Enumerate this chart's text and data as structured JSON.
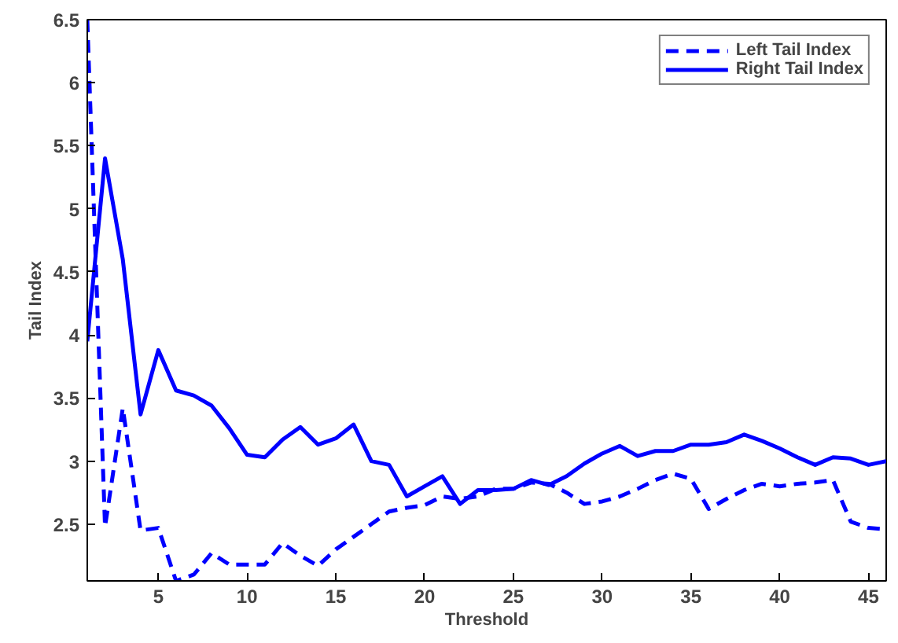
{
  "chart_data": {
    "type": "line",
    "xlabel": "Threshold",
    "ylabel": "Tail Index",
    "x": [
      1,
      2,
      3,
      4,
      5,
      6,
      7,
      8,
      9,
      10,
      11,
      12,
      13,
      14,
      15,
      16,
      17,
      18,
      19,
      20,
      21,
      22,
      23,
      24,
      25,
      26,
      27,
      28,
      29,
      30,
      31,
      32,
      33,
      34,
      35,
      36,
      37,
      38,
      39,
      40,
      41,
      42,
      43,
      44,
      45,
      46
    ],
    "series": [
      {
        "name": "Left Tail Index",
        "color": "#0000ff",
        "line_style": "dashed",
        "values": [
          6.5,
          2.48,
          3.42,
          2.45,
          2.47,
          2.05,
          2.1,
          2.27,
          2.18,
          2.18,
          2.18,
          2.35,
          2.25,
          2.17,
          2.3,
          2.4,
          2.5,
          2.6,
          2.63,
          2.65,
          2.72,
          2.7,
          2.72,
          2.78,
          2.78,
          2.83,
          2.82,
          2.75,
          2.66,
          2.68,
          2.72,
          2.78,
          2.85,
          2.9,
          2.86,
          2.62,
          2.7,
          2.77,
          2.82,
          2.8,
          2.82,
          2.83,
          2.85,
          2.52,
          2.47,
          2.46
        ]
      },
      {
        "name": "Right Tail Index",
        "color": "#0000ff",
        "line_style": "solid",
        "values": [
          3.95,
          5.4,
          4.6,
          3.37,
          3.88,
          3.56,
          3.52,
          3.44,
          3.26,
          3.05,
          3.03,
          3.17,
          3.27,
          3.13,
          3.18,
          3.29,
          3.0,
          2.97,
          2.72,
          2.8,
          2.88,
          2.66,
          2.77,
          2.77,
          2.78,
          2.85,
          2.81,
          2.88,
          2.98,
          3.06,
          3.12,
          3.04,
          3.08,
          3.08,
          3.13,
          3.13,
          3.15,
          3.21,
          3.16,
          3.1,
          3.03,
          2.97,
          3.03,
          3.02,
          2.97,
          3.0
        ]
      }
    ],
    "xlim": [
      1,
      46
    ],
    "ylim": [
      2.05,
      6.5
    ],
    "xticks": [
      5,
      10,
      15,
      20,
      25,
      30,
      35,
      40,
      45
    ],
    "yticks": [
      2.5,
      3,
      3.5,
      4,
      4.5,
      5,
      5.5,
      6,
      6.5
    ],
    "grid": false,
    "legend": "top right",
    "marker": "none"
  }
}
